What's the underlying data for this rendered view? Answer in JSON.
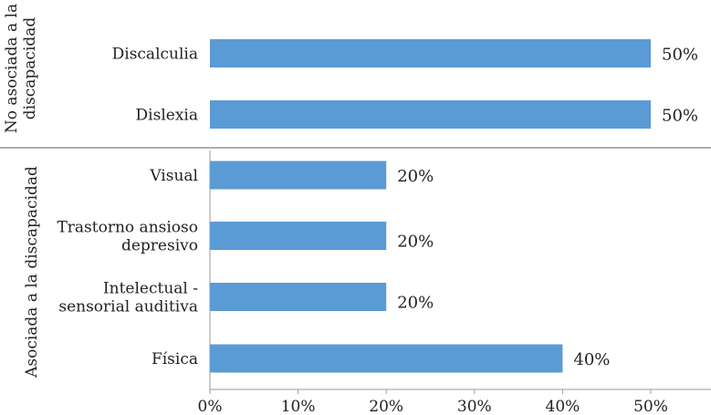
{
  "chart_data": {
    "type": "bar",
    "orientation": "horizontal",
    "title": "",
    "xlabel": "",
    "ylabel": "",
    "xlim": [
      0,
      50
    ],
    "x_ticks": [
      "0%",
      "10%",
      "20%",
      "30%",
      "40%",
      "50%"
    ],
    "bar_color": "#5B9BD5",
    "groups": [
      {
        "name": "No asociada a la discapacidad",
        "categories": [
          {
            "label": [
              "Discalculia"
            ],
            "value": 50,
            "value_label": "50%"
          },
          {
            "label": [
              "Dislexia"
            ],
            "value": 50,
            "value_label": "50%"
          }
        ]
      },
      {
        "name": "Asociada a la  discapacidad",
        "categories": [
          {
            "label": [
              "Visual"
            ],
            "value": 20,
            "value_label": "20%"
          },
          {
            "label": [
              "Trastorno ansioso",
              "depresivo"
            ],
            "value": 20,
            "value_label": "20%"
          },
          {
            "label": [
              "Intelectual -",
              "sensorial auditiva"
            ],
            "value": 20,
            "value_label": "20%"
          },
          {
            "label": [
              "Física"
            ],
            "value": 40,
            "value_label": "40%"
          }
        ]
      }
    ]
  }
}
